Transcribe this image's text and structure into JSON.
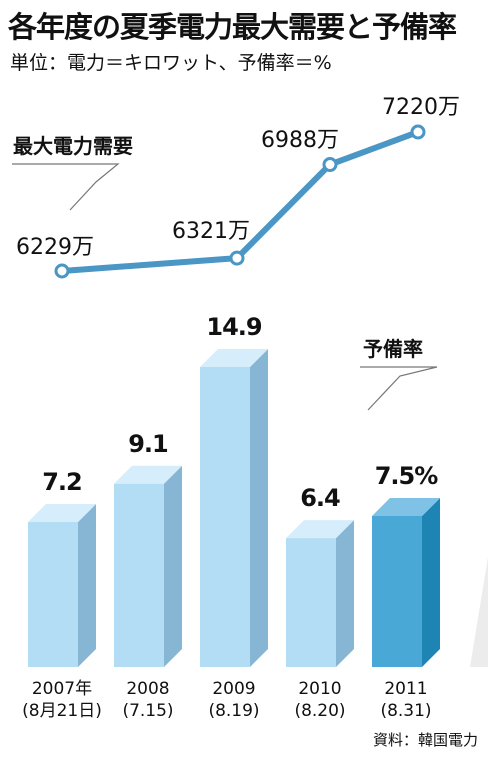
{
  "header": {
    "title": "各年度の夏季電力最大需要と予備率",
    "unit_note": "単位：電力＝キロワット、予備率＝%"
  },
  "source": "資料：韓国電力",
  "colors": {
    "line": "#4a96c4",
    "bar_front": "#b3dcf5",
    "bar_top": "#d6edfb",
    "bar_side": "#86b6d3",
    "highlight_front": "#4aa8d6",
    "highlight_top": "#7fc2e6",
    "highlight_side": "#1d84b3"
  },
  "chart_data": [
    {
      "type": "line",
      "label": "最大電力需要",
      "categories": [
        "2007年(8月21日)",
        "2008(7.15)",
        "2009(8.19)",
        "2010(8.20)",
        "2011(8.31)"
      ],
      "points": [
        {
          "year": "2007",
          "value": 6229,
          "label": "6229万"
        },
        {
          "year": "2009",
          "value": 6321,
          "label": "6321万"
        },
        {
          "year": "2010",
          "value": 6988,
          "label": "6988万"
        },
        {
          "year": "2011",
          "value": 7220,
          "label": "7220万"
        }
      ]
    },
    {
      "type": "bar",
      "label": "予備率",
      "categories": [
        {
          "year": "2007年",
          "date": "(8月21日)"
        },
        {
          "year": "2008",
          "date": "(7.15)"
        },
        {
          "year": "2009",
          "date": "(8.19)"
        },
        {
          "year": "2010",
          "date": "(8.20)"
        },
        {
          "year": "2011",
          "date": "(8.31)"
        }
      ],
      "values": [
        7.2,
        9.1,
        14.9,
        6.4,
        7.5
      ],
      "value_labels": [
        "7.2",
        "9.1",
        "14.9",
        "6.4",
        "7.5%"
      ],
      "highlight_index": 4
    }
  ]
}
